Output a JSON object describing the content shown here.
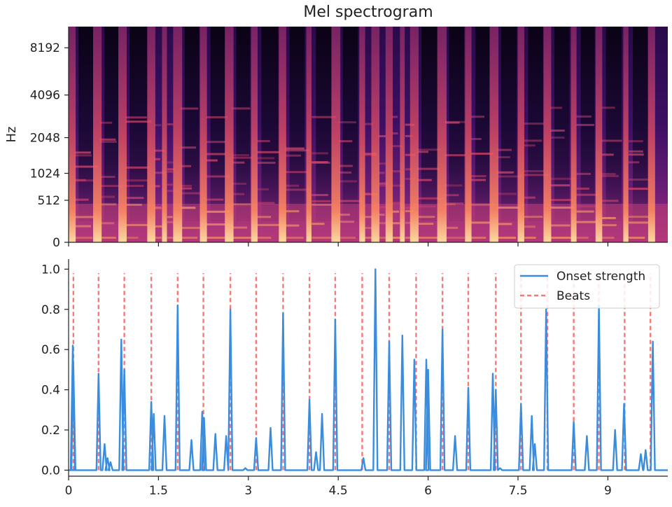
{
  "chart_data": [
    {
      "type": "heatmap",
      "title": "Mel spectrogram",
      "ylabel": "Hz",
      "y_scale": "mel",
      "y_ticks": [
        "0",
        "512",
        "1024",
        "2048",
        "4096",
        "8192"
      ],
      "x_range": [
        0,
        10
      ],
      "colormap": "magma",
      "note": "onset columns align with the beat/onset times of the lower panel",
      "onset_columns": [
        0.05,
        0.48,
        0.9,
        1.38,
        1.6,
        1.82,
        2.25,
        2.68,
        3.1,
        3.57,
        4.01,
        4.46,
        4.9,
        5.12,
        5.35,
        5.57,
        5.77,
        6.23,
        6.67,
        7.1,
        7.55,
        7.99,
        8.43,
        8.85,
        9.3,
        9.73
      ],
      "colors": {
        "low": "#000004",
        "mid": "#b73779",
        "high": "#fcfdbf"
      }
    },
    {
      "type": "line",
      "xlim": [
        0,
        10
      ],
      "ylim": [
        -0.03,
        1.05
      ],
      "x_ticks": [
        "0",
        "1.5",
        "3",
        "4.5",
        "6",
        "7.5",
        "9"
      ],
      "y_ticks": [
        "0.0",
        "0.2",
        "0.4",
        "0.6",
        "0.8",
        "1.0"
      ],
      "legend_position": "top-right",
      "series": [
        {
          "name": "Onset strength",
          "color": "#3a8dde",
          "peaks": [
            [
              0.07,
              0.62
            ],
            [
              0.08,
              0.52
            ],
            [
              0.5,
              0.48
            ],
            [
              0.6,
              0.13
            ],
            [
              0.65,
              0.06
            ],
            [
              0.7,
              0.04
            ],
            [
              0.88,
              0.65
            ],
            [
              0.93,
              0.5
            ],
            [
              1.38,
              0.34
            ],
            [
              1.42,
              0.28
            ],
            [
              1.6,
              0.27
            ],
            [
              1.82,
              0.82
            ],
            [
              2.05,
              0.15
            ],
            [
              2.23,
              0.29
            ],
            [
              2.26,
              0.26
            ],
            [
              2.45,
              0.18
            ],
            [
              2.63,
              0.17
            ],
            [
              2.7,
              0.8
            ],
            [
              2.95,
              0.01
            ],
            [
              3.13,
              0.16
            ],
            [
              3.37,
              0.21
            ],
            [
              3.58,
              0.78
            ],
            [
              4.02,
              0.35
            ],
            [
              4.13,
              0.09
            ],
            [
              4.23,
              0.28
            ],
            [
              4.45,
              0.75
            ],
            [
              4.92,
              0.06
            ],
            [
              5.12,
              1.0
            ],
            [
              5.35,
              0.64
            ],
            [
              5.57,
              0.67
            ],
            [
              5.77,
              0.55
            ],
            [
              5.97,
              0.55
            ],
            [
              6.0,
              0.5
            ],
            [
              6.24,
              0.7
            ],
            [
              6.45,
              0.17
            ],
            [
              6.67,
              0.41
            ],
            [
              7.08,
              0.48
            ],
            [
              7.13,
              0.4
            ],
            [
              7.2,
              0.01
            ],
            [
              7.55,
              0.33
            ],
            [
              7.73,
              0.27
            ],
            [
              7.78,
              0.13
            ],
            [
              7.97,
              0.8
            ],
            [
              8.43,
              0.24
            ],
            [
              8.65,
              0.17
            ],
            [
              8.85,
              0.82
            ],
            [
              9.12,
              0.2
            ],
            [
              9.27,
              0.33
            ],
            [
              9.55,
              0.08
            ],
            [
              9.63,
              0.1
            ],
            [
              9.75,
              0.64
            ]
          ]
        },
        {
          "name": "Beats",
          "color": "#f37a7a",
          "style": "dashed",
          "x": [
            0.08,
            0.5,
            0.93,
            1.38,
            1.82,
            2.25,
            2.7,
            3.13,
            3.58,
            4.02,
            4.45,
            4.9,
            5.35,
            5.8,
            6.24,
            6.67,
            7.13,
            7.55,
            7.99,
            8.43,
            8.85,
            9.28,
            9.71
          ]
        }
      ]
    }
  ]
}
